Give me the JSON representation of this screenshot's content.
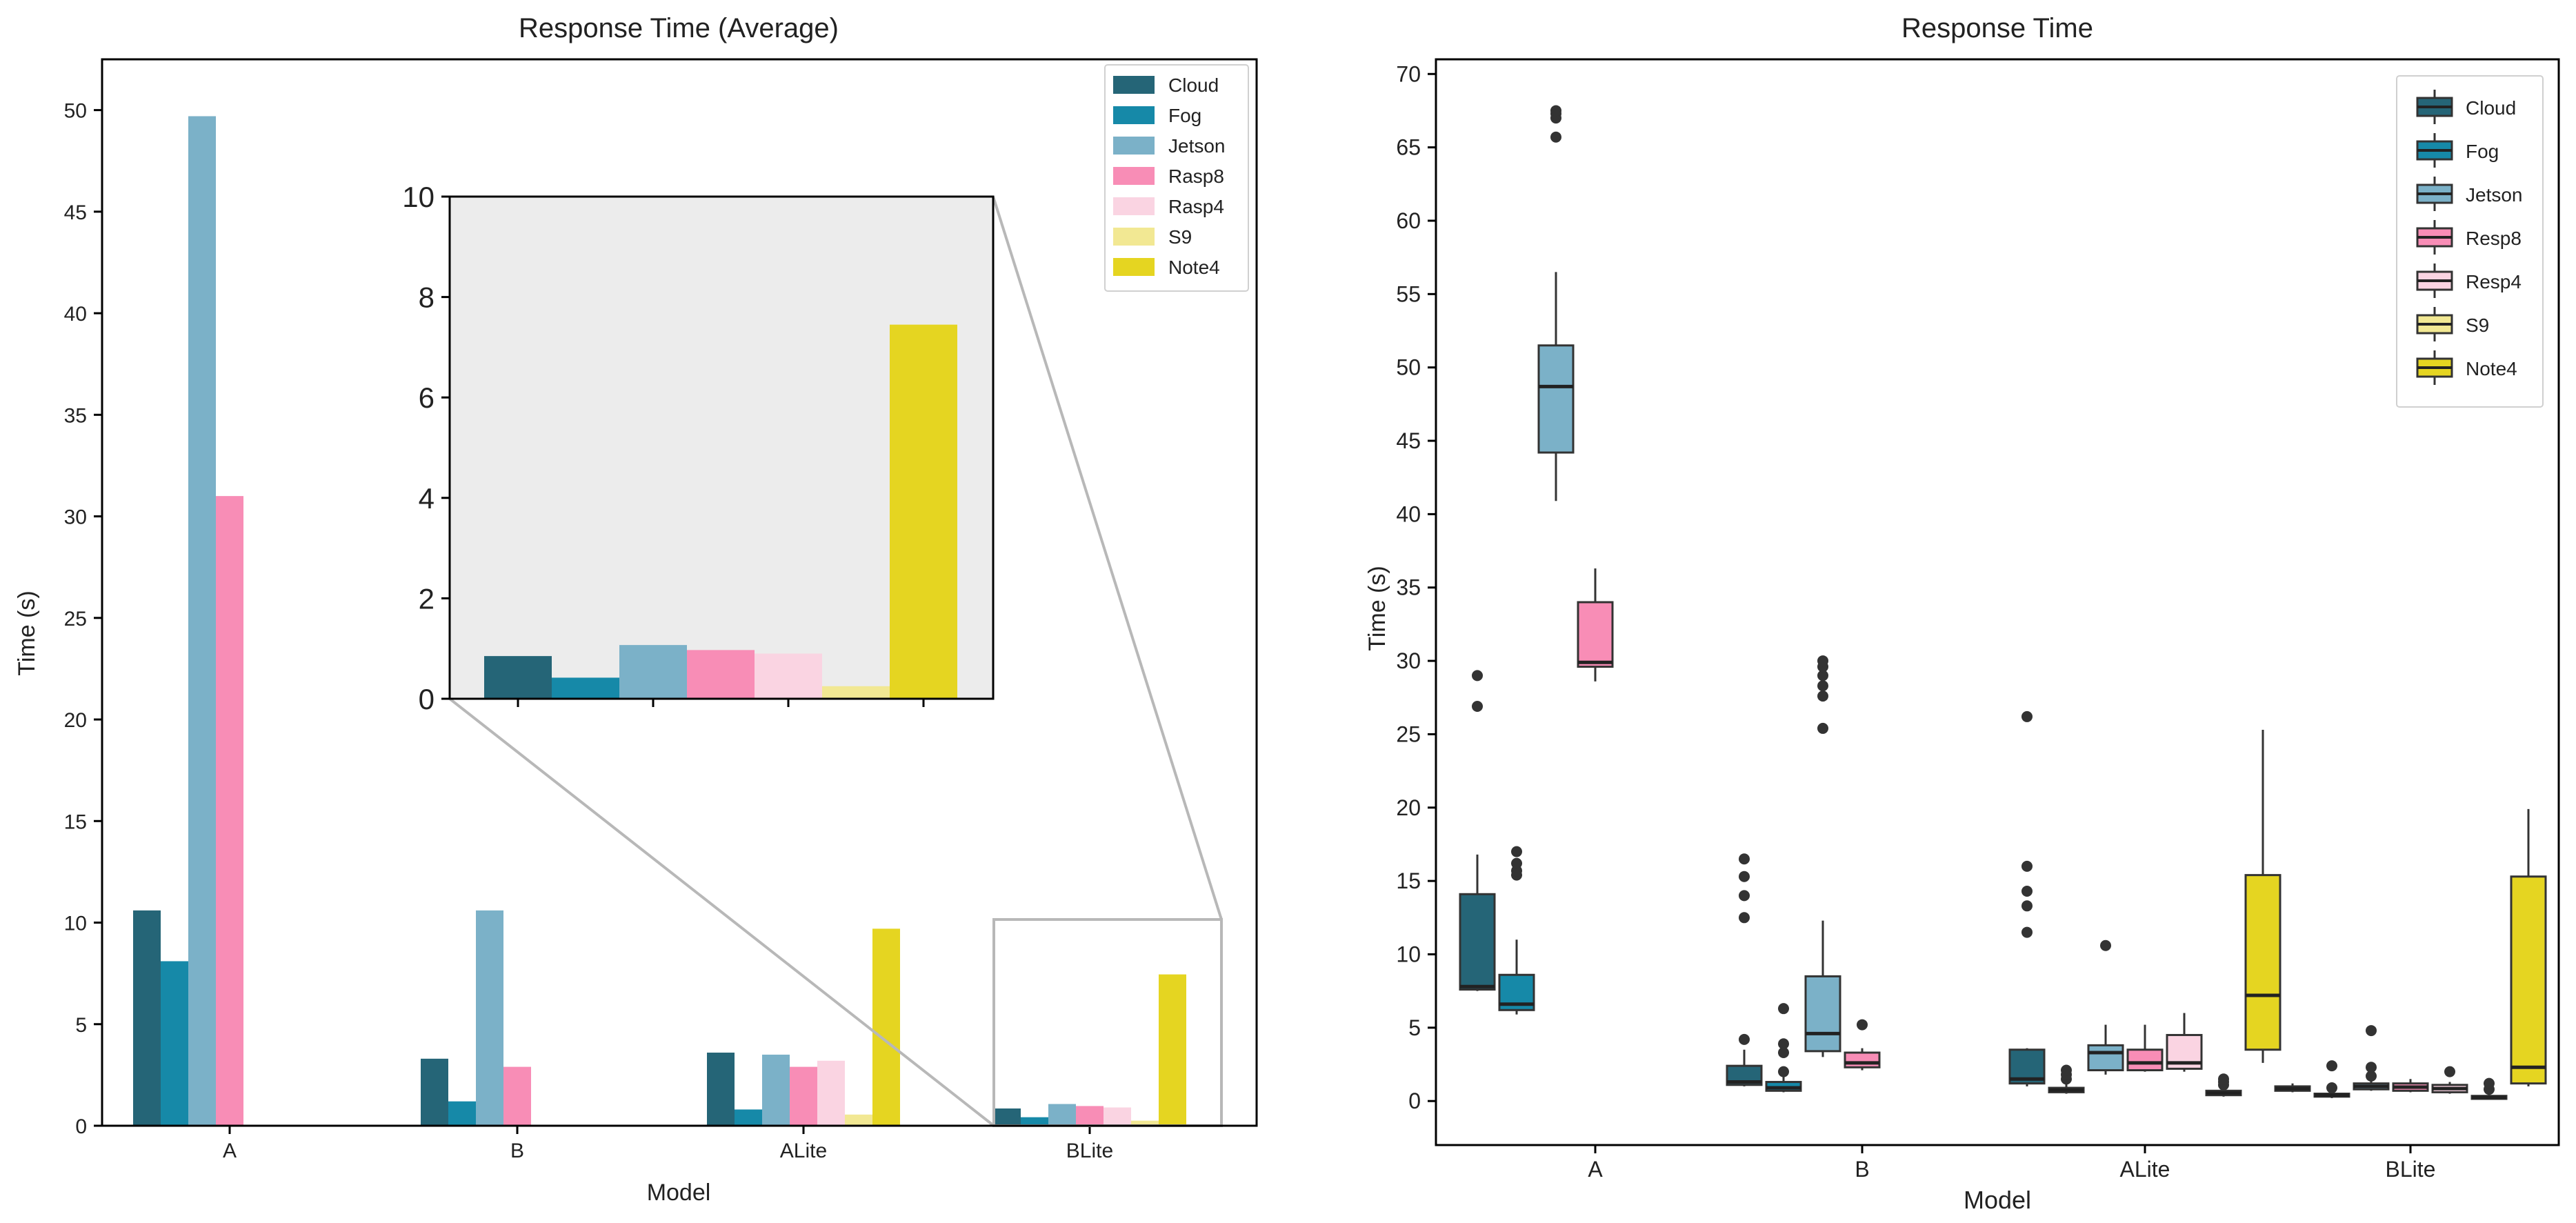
{
  "colors": {
    "Cloud": "#256577",
    "Fog": "#1689a8",
    "Jetson": "#7bb1c8",
    "Rasp8": "#f88db6",
    "Rasp4": "#fad4e2",
    "S9": "#f2e893",
    "Note4": "#e5d521",
    "inset_bg": "#ececec",
    "frame": "#000000",
    "connector": "#b8b8b8",
    "whisker": "#333333"
  },
  "chart_data": [
    {
      "type": "bar",
      "title": "Response Time (Average)",
      "xlabel": "Model",
      "ylabel": "Time (s)",
      "ylim": [
        0,
        52.5
      ],
      "yticks": [
        "0",
        "5",
        "10",
        "15",
        "20",
        "25",
        "30",
        "35",
        "40",
        "45",
        "50"
      ],
      "categories": [
        "A",
        "B",
        "ALite",
        "BLite"
      ],
      "legend_position": "top-right",
      "series": [
        {
          "name": "Cloud",
          "values": [
            10.6,
            3.3,
            3.6,
            0.85
          ]
        },
        {
          "name": "Fog",
          "values": [
            8.1,
            1.2,
            0.8,
            0.42
          ]
        },
        {
          "name": "Jetson",
          "values": [
            49.7,
            10.6,
            3.5,
            1.07
          ]
        },
        {
          "name": "Rasp8",
          "values": [
            31.0,
            2.9,
            2.9,
            0.97
          ]
        },
        {
          "name": "Rasp4",
          "values": [
            null,
            null,
            3.2,
            0.9
          ]
        },
        {
          "name": "S9",
          "values": [
            null,
            null,
            0.55,
            0.25
          ]
        },
        {
          "name": "Note4",
          "values": [
            null,
            null,
            9.7,
            7.45
          ]
        }
      ],
      "inset": {
        "category": "BLite",
        "ylim": [
          0,
          10
        ],
        "yticks": [
          "0",
          "2",
          "4",
          "6",
          "8",
          "10"
        ]
      }
    },
    {
      "type": "box",
      "title": "Response Time",
      "xlabel": "Model",
      "ylabel": "Time (s)",
      "ylim": [
        -3,
        71
      ],
      "yticks": [
        "0",
        "5",
        "10",
        "15",
        "20",
        "25",
        "30",
        "35",
        "40",
        "45",
        "50",
        "55",
        "60",
        "65",
        "70"
      ],
      "categories": [
        "A",
        "B",
        "ALite",
        "BLite"
      ],
      "legend_position": "top-right",
      "series_names": [
        "Cloud",
        "Fog",
        "Jetson",
        "Resp8",
        "Resp4",
        "S9",
        "Note4"
      ],
      "series_colors": [
        "Cloud",
        "Fog",
        "Jetson",
        "Rasp8",
        "Rasp4",
        "S9",
        "Note4"
      ],
      "boxes": [
        {
          "category": "A",
          "series": "Cloud",
          "whislo": 7.5,
          "q1": 7.6,
          "med": 7.8,
          "q3": 14.1,
          "whishi": 16.8,
          "fliers": [
            26.9,
            29.0
          ]
        },
        {
          "category": "A",
          "series": "Fog",
          "whislo": 5.9,
          "q1": 6.2,
          "med": 6.6,
          "q3": 8.6,
          "whishi": 11.0,
          "fliers": [
            15.4,
            15.7,
            16.2,
            17.0
          ]
        },
        {
          "category": "A",
          "series": "Jetson",
          "whislo": 40.9,
          "q1": 44.2,
          "med": 48.7,
          "q3": 51.5,
          "whishi": 56.5,
          "fliers": [
            65.7,
            67.0,
            67.3,
            67.5
          ]
        },
        {
          "category": "A",
          "series": "Resp8",
          "whislo": 28.6,
          "q1": 29.6,
          "med": 29.9,
          "q3": 34.0,
          "whishi": 36.3,
          "fliers": []
        },
        {
          "category": "B",
          "series": "Cloud",
          "whislo": 1.0,
          "q1": 1.1,
          "med": 1.3,
          "q3": 2.4,
          "whishi": 3.5,
          "fliers": [
            4.2,
            12.5,
            14.0,
            15.3,
            16.5
          ]
        },
        {
          "category": "B",
          "series": "Fog",
          "whislo": 0.6,
          "q1": 0.7,
          "med": 0.9,
          "q3": 1.3,
          "whishi": 1.7,
          "fliers": [
            2.0,
            3.3,
            3.9,
            6.3
          ]
        },
        {
          "category": "B",
          "series": "Jetson",
          "whislo": 3.0,
          "q1": 3.4,
          "med": 4.6,
          "q3": 8.5,
          "whishi": 12.3,
          "fliers": [
            25.4,
            27.6,
            28.3,
            29.0,
            29.6,
            30.0
          ]
        },
        {
          "category": "B",
          "series": "Resp8",
          "whislo": 2.1,
          "q1": 2.3,
          "med": 2.6,
          "q3": 3.3,
          "whishi": 3.6,
          "fliers": [
            5.2
          ]
        },
        {
          "category": "ALite",
          "series": "Cloud",
          "whislo": 1.0,
          "q1": 1.2,
          "med": 1.5,
          "q3": 3.5,
          "whishi": 3.6,
          "fliers": [
            11.5,
            13.3,
            14.3,
            16.0,
            26.2
          ]
        },
        {
          "category": "ALite",
          "series": "Fog",
          "whislo": 0.5,
          "q1": 0.6,
          "med": 0.75,
          "q3": 0.9,
          "whishi": 1.2,
          "fliers": [
            1.5,
            1.8,
            2.1
          ]
        },
        {
          "category": "ALite",
          "series": "Jetson",
          "whislo": 1.8,
          "q1": 2.1,
          "med": 3.3,
          "q3": 3.8,
          "whishi": 5.2,
          "fliers": [
            10.6
          ]
        },
        {
          "category": "ALite",
          "series": "Resp8",
          "whislo": 2.0,
          "q1": 2.1,
          "med": 2.6,
          "q3": 3.5,
          "whishi": 5.2,
          "fliers": []
        },
        {
          "category": "ALite",
          "series": "Resp4",
          "whislo": 2.0,
          "q1": 2.2,
          "med": 2.6,
          "q3": 4.5,
          "whishi": 6.0,
          "fliers": []
        },
        {
          "category": "ALite",
          "series": "S9",
          "whislo": 0.3,
          "q1": 0.4,
          "med": 0.55,
          "q3": 0.7,
          "whishi": 0.9,
          "fliers": [
            1.1,
            1.3,
            1.5
          ]
        },
        {
          "category": "ALite",
          "series": "Note4",
          "whislo": 2.6,
          "q1": 3.5,
          "med": 7.2,
          "q3": 15.4,
          "whishi": 25.3,
          "fliers": []
        },
        {
          "category": "BLite",
          "series": "Cloud",
          "whislo": 0.6,
          "q1": 0.7,
          "med": 0.85,
          "q3": 1.0,
          "whishi": 1.2,
          "fliers": []
        },
        {
          "category": "BLite",
          "series": "Fog",
          "whislo": 0.2,
          "q1": 0.3,
          "med": 0.4,
          "q3": 0.5,
          "whishi": 0.6,
          "fliers": [
            0.9,
            2.4
          ]
        },
        {
          "category": "BLite",
          "series": "Jetson",
          "whislo": 0.7,
          "q1": 0.8,
          "med": 1.0,
          "q3": 1.2,
          "whishi": 1.5,
          "fliers": [
            1.7,
            2.3,
            4.8
          ]
        },
        {
          "category": "BLite",
          "series": "Resp8",
          "whislo": 0.6,
          "q1": 0.7,
          "med": 0.95,
          "q3": 1.2,
          "whishi": 1.5,
          "fliers": []
        },
        {
          "category": "BLite",
          "series": "Resp4",
          "whislo": 0.5,
          "q1": 0.6,
          "med": 0.85,
          "q3": 1.1,
          "whishi": 1.3,
          "fliers": [
            2.0
          ]
        },
        {
          "category": "BLite",
          "series": "S9",
          "whislo": 0.1,
          "q1": 0.15,
          "med": 0.25,
          "q3": 0.35,
          "whishi": 0.45,
          "fliers": [
            0.8,
            1.2
          ]
        },
        {
          "category": "BLite",
          "series": "Note4",
          "whislo": 1.0,
          "q1": 1.2,
          "med": 2.3,
          "q3": 15.3,
          "whishi": 19.9,
          "fliers": []
        }
      ]
    }
  ]
}
